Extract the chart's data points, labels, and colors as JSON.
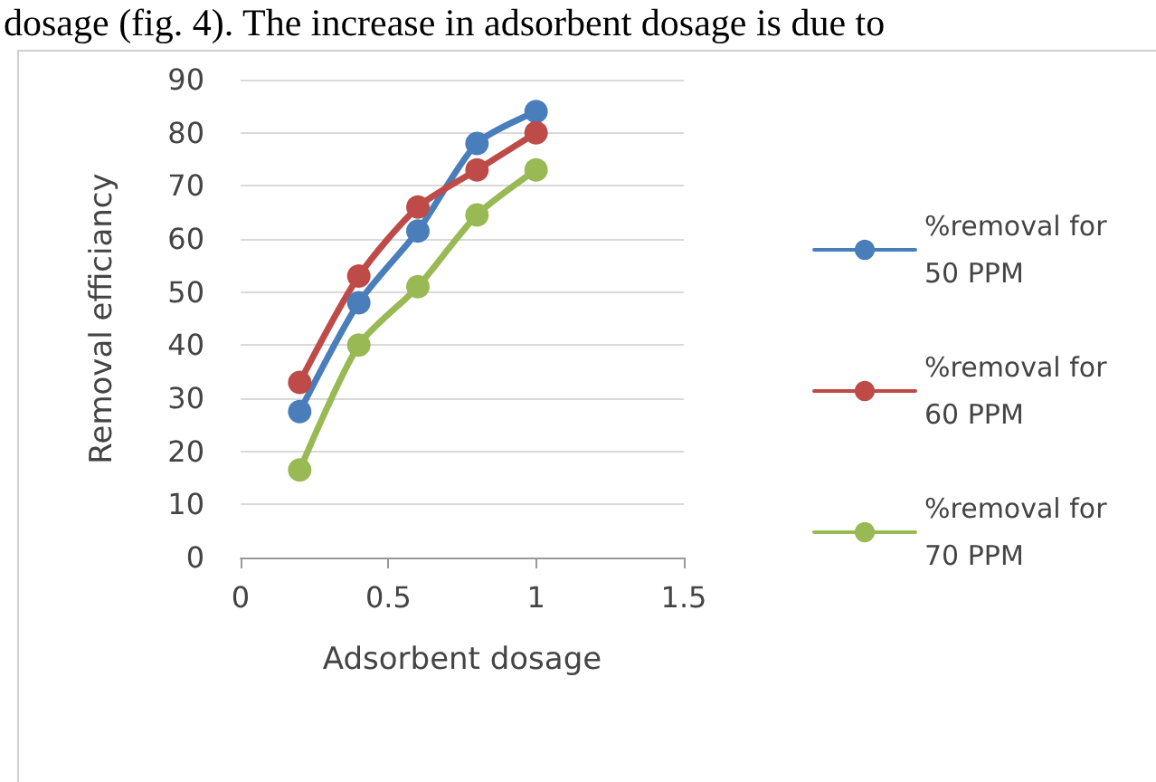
{
  "chart_data": {
    "type": "line",
    "xlabel": "Adsorbent dosage",
    "ylabel": "Removal efficiancy",
    "annotations": [
      "dosage (fig. 4). The increase in adsorbent dosage is due to"
    ],
    "x": [
      0.2,
      0.4,
      0.6,
      0.8,
      1.0
    ],
    "series": [
      {
        "name": "%removal for 50 PPM",
        "color": "#4a7ebb",
        "values": [
          27.5,
          48,
          61.5,
          78,
          84
        ]
      },
      {
        "name": "%removal for 60 PPM",
        "color": "#be4b48",
        "values": [
          33,
          53,
          66,
          73,
          80
        ]
      },
      {
        "name": "%removal for 70 PPM",
        "color": "#98b954",
        "values": [
          16.5,
          40,
          51,
          64.5,
          73
        ]
      }
    ],
    "xlim": [
      0,
      1.5
    ],
    "xticks": [
      0,
      0.5,
      1,
      1.5
    ],
    "ylim": [
      0,
      90
    ],
    "yticks": [
      0,
      10,
      20,
      30,
      40,
      50,
      60,
      70,
      80,
      90
    ],
    "grid": "y",
    "legend": "right",
    "marker": "circle",
    "line_style": "solid"
  }
}
